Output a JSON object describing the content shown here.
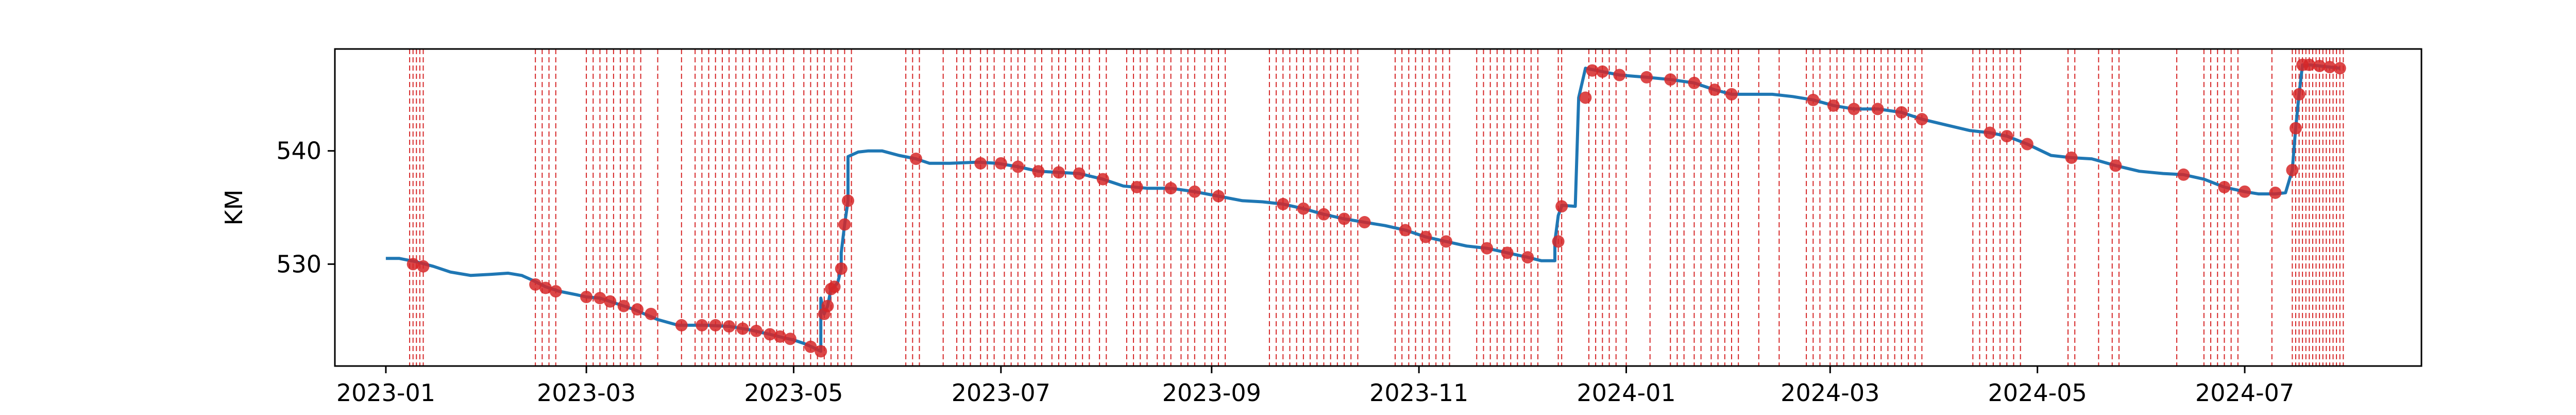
{
  "chart_data": {
    "type": "line",
    "title": "",
    "xlabel": "",
    "ylabel": "KM",
    "xlim": [
      "2022-12-17",
      "2024-08-22"
    ],
    "ylim": [
      521,
      549
    ],
    "grid": false,
    "legend": "none",
    "colors": {
      "series": "#1f77b4",
      "events": "#d62728",
      "points": "#d62728"
    },
    "x_ticks": [
      "2023-01",
      "2023-03",
      "2023-05",
      "2023-07",
      "2023-09",
      "2023-11",
      "2024-01",
      "2024-03",
      "2024-05",
      "2024-07"
    ],
    "x_tick_dates": [
      "2023-01-01",
      "2023-03-01",
      "2023-05-01",
      "2023-07-01",
      "2023-09-01",
      "2023-11-01",
      "2024-01-01",
      "2024-03-01",
      "2024-05-01",
      "2024-07-01"
    ],
    "y_ticks": [
      530,
      540
    ],
    "series": [
      {
        "x": [
          "2023-01-01",
          "2023-01-05",
          "2023-01-10",
          "2023-01-15",
          "2023-01-20",
          "2023-01-26",
          "2023-02-01",
          "2023-02-06",
          "2023-02-10",
          "2023-02-13",
          "2023-02-17",
          "2023-02-21",
          "2023-02-26",
          "2023-03-01",
          "2023-03-05",
          "2023-03-10",
          "2023-03-15",
          "2023-03-22",
          "2023-03-28",
          "2023-04-05",
          "2023-04-12",
          "2023-04-18",
          "2023-04-24",
          "2023-04-28",
          "2023-05-01",
          "2023-05-04",
          "2023-05-07",
          "2023-05-09",
          "2023-05-09",
          "2023-05-10",
          "2023-05-11",
          "2023-05-12",
          "2023-05-13",
          "2023-05-14",
          "2023-05-15",
          "2023-05-15",
          "2023-05-16",
          "2023-05-17",
          "2023-05-17",
          "2023-05-20",
          "2023-05-23",
          "2023-05-27",
          "2023-06-01",
          "2023-06-06",
          "2023-06-10",
          "2023-06-16",
          "2023-06-24",
          "2023-06-30",
          "2023-07-06",
          "2023-07-12",
          "2023-07-18",
          "2023-07-24",
          "2023-07-31",
          "2023-08-06",
          "2023-08-13",
          "2023-08-20",
          "2023-08-27",
          "2023-09-03",
          "2023-09-10",
          "2023-09-16",
          "2023-09-22",
          "2023-09-28",
          "2023-10-04",
          "2023-10-10",
          "2023-10-16",
          "2023-10-22",
          "2023-10-28",
          "2023-11-03",
          "2023-11-09",
          "2023-11-15",
          "2023-11-21",
          "2023-11-27",
          "2023-12-03",
          "2023-12-07",
          "2023-12-09",
          "2023-12-11",
          "2023-12-11",
          "2023-12-12",
          "2023-12-13",
          "2023-12-13",
          "2023-12-17",
          "2023-12-18",
          "2023-12-20",
          "2023-12-25",
          "2023-12-30",
          "2024-01-07",
          "2024-01-14",
          "2024-01-21",
          "2024-01-27",
          "2024-02-01",
          "2024-02-07",
          "2024-02-13",
          "2024-02-19",
          "2024-02-25",
          "2024-03-02",
          "2024-03-08",
          "2024-03-15",
          "2024-03-22",
          "2024-03-28",
          "2024-04-04",
          "2024-04-11",
          "2024-04-17",
          "2024-04-22",
          "2024-04-28",
          "2024-05-05",
          "2024-05-11",
          "2024-05-17",
          "2024-05-24",
          "2024-05-31",
          "2024-06-07",
          "2024-06-13",
          "2024-06-19",
          "2024-06-25",
          "2024-07-01",
          "2024-07-05",
          "2024-07-10",
          "2024-07-13",
          "2024-07-15",
          "2024-07-16",
          "2024-07-17",
          "2024-07-18",
          "2024-07-19",
          "2024-07-20",
          "2024-07-23",
          "2024-07-26",
          "2024-07-29"
        ],
        "y": [
          530.5,
          530.5,
          530.2,
          529.8,
          529.3,
          529.0,
          529.1,
          529.2,
          529.0,
          528.6,
          528.0,
          527.6,
          527.3,
          527.1,
          527.0,
          526.5,
          526.0,
          525.1,
          524.6,
          524.6,
          524.5,
          524.2,
          523.8,
          523.5,
          523.3,
          523.0,
          522.6,
          522.3,
          527.0,
          525.6,
          526.3,
          527.8,
          528.0,
          528.4,
          529.6,
          531.0,
          533.5,
          535.6,
          539.5,
          539.9,
          540.0,
          540.0,
          539.6,
          539.3,
          538.9,
          538.9,
          539.0,
          538.9,
          538.6,
          538.2,
          538.1,
          538.0,
          537.5,
          536.9,
          536.7,
          536.7,
          536.4,
          536.0,
          535.6,
          535.5,
          535.3,
          534.9,
          534.4,
          534.0,
          533.7,
          533.4,
          533.0,
          532.4,
          532.0,
          531.6,
          531.4,
          531.0,
          530.6,
          530.3,
          530.3,
          530.3,
          532.0,
          534.3,
          535.1,
          535.2,
          535.1,
          544.7,
          547.3,
          547.0,
          546.7,
          546.5,
          546.3,
          546.0,
          545.4,
          545.0,
          545.0,
          545.0,
          544.8,
          544.5,
          544.0,
          543.7,
          543.7,
          543.4,
          542.8,
          542.3,
          541.8,
          541.6,
          541.3,
          540.6,
          539.6,
          539.4,
          539.3,
          538.7,
          538.2,
          538.0,
          537.9,
          537.5,
          536.8,
          536.4,
          536.2,
          536.2,
          536.3,
          538.3,
          542.0,
          545.0,
          547.6,
          547.5,
          547.6,
          547.5,
          547.4,
          547.3
        ]
      }
    ],
    "points": {
      "x": [
        "2023-01-09",
        "2023-01-12",
        "2023-02-14",
        "2023-02-17",
        "2023-02-20",
        "2023-03-01",
        "2023-03-05",
        "2023-03-08",
        "2023-03-12",
        "2023-03-16",
        "2023-03-20",
        "2023-03-29",
        "2023-04-04",
        "2023-04-08",
        "2023-04-12",
        "2023-04-16",
        "2023-04-20",
        "2023-04-24",
        "2023-04-27",
        "2023-04-30",
        "2023-05-06",
        "2023-05-09",
        "2023-05-10",
        "2023-05-11",
        "2023-05-12",
        "2023-05-13",
        "2023-05-15",
        "2023-05-16",
        "2023-05-17",
        "2023-06-06",
        "2023-06-25",
        "2023-07-01",
        "2023-07-06",
        "2023-07-12",
        "2023-07-18",
        "2023-07-24",
        "2023-07-31",
        "2023-08-10",
        "2023-08-20",
        "2023-08-27",
        "2023-09-03",
        "2023-09-22",
        "2023-09-28",
        "2023-10-04",
        "2023-10-10",
        "2023-10-16",
        "2023-10-28",
        "2023-11-03",
        "2023-11-09",
        "2023-11-21",
        "2023-11-27",
        "2023-12-03",
        "2023-12-12",
        "2023-12-13",
        "2023-12-20",
        "2023-12-22",
        "2023-12-25",
        "2023-12-30",
        "2024-01-07",
        "2024-01-14",
        "2024-01-21",
        "2024-01-27",
        "2024-02-01",
        "2024-02-25",
        "2024-03-02",
        "2024-03-08",
        "2024-03-15",
        "2024-03-22",
        "2024-03-28",
        "2024-04-17",
        "2024-04-22",
        "2024-04-28",
        "2024-05-11",
        "2024-05-24",
        "2024-06-13",
        "2024-06-25",
        "2024-07-01",
        "2024-07-10",
        "2024-07-15",
        "2024-07-16",
        "2024-07-17",
        "2024-07-18",
        "2024-07-20",
        "2024-07-23",
        "2024-07-26",
        "2024-07-29"
      ],
      "y": [
        530.0,
        529.8,
        528.2,
        527.9,
        527.6,
        527.1,
        527.0,
        526.7,
        526.3,
        526.0,
        525.6,
        524.6,
        524.6,
        524.6,
        524.5,
        524.3,
        524.1,
        523.8,
        523.6,
        523.4,
        522.7,
        522.3,
        525.6,
        526.3,
        527.8,
        528.0,
        529.6,
        533.5,
        535.6,
        539.3,
        538.9,
        538.9,
        538.6,
        538.2,
        538.1,
        538.0,
        537.5,
        536.8,
        536.7,
        536.4,
        536.0,
        535.3,
        534.9,
        534.4,
        534.0,
        533.7,
        533.0,
        532.4,
        532.0,
        531.4,
        531.0,
        530.6,
        532.0,
        535.1,
        544.7,
        547.1,
        547.0,
        546.7,
        546.5,
        546.3,
        546.0,
        545.4,
        545.0,
        544.5,
        544.0,
        543.7,
        543.7,
        543.4,
        542.8,
        541.6,
        541.3,
        540.6,
        539.4,
        538.7,
        537.9,
        536.8,
        536.4,
        536.3,
        538.3,
        542.0,
        545.0,
        547.6,
        547.6,
        547.5,
        547.4,
        547.3
      ]
    },
    "event_dates": [
      "2023-01-08",
      "2023-01-09",
      "2023-01-10",
      "2023-01-11",
      "2023-01-12",
      "2023-02-14",
      "2023-02-16",
      "2023-02-18",
      "2023-02-20",
      "2023-03-01",
      "2023-03-03",
      "2023-03-05",
      "2023-03-07",
      "2023-03-09",
      "2023-03-11",
      "2023-03-13",
      "2023-03-15",
      "2023-03-17",
      "2023-03-22",
      "2023-03-29",
      "2023-04-02",
      "2023-04-04",
      "2023-04-06",
      "2023-04-08",
      "2023-04-10",
      "2023-04-12",
      "2023-04-14",
      "2023-04-16",
      "2023-04-18",
      "2023-04-20",
      "2023-04-22",
      "2023-04-24",
      "2023-04-26",
      "2023-04-28",
      "2023-05-01",
      "2023-05-04",
      "2023-05-06",
      "2023-05-08",
      "2023-05-10",
      "2023-05-12",
      "2023-05-14",
      "2023-05-16",
      "2023-05-18",
      "2023-06-03",
      "2023-06-05",
      "2023-06-07",
      "2023-06-14",
      "2023-06-18",
      "2023-06-20",
      "2023-06-22",
      "2023-06-25",
      "2023-06-27",
      "2023-06-29",
      "2023-07-02",
      "2023-07-04",
      "2023-07-06",
      "2023-07-08",
      "2023-07-11",
      "2023-07-13",
      "2023-07-16",
      "2023-07-18",
      "2023-07-20",
      "2023-07-23",
      "2023-07-25",
      "2023-07-27",
      "2023-07-30",
      "2023-08-01",
      "2023-08-07",
      "2023-08-09",
      "2023-08-11",
      "2023-08-13",
      "2023-08-16",
      "2023-08-18",
      "2023-08-20",
      "2023-08-23",
      "2023-08-25",
      "2023-08-27",
      "2023-08-30",
      "2023-09-01",
      "2023-09-03",
      "2023-09-05",
      "2023-09-18",
      "2023-09-20",
      "2023-09-22",
      "2023-09-24",
      "2023-09-26",
      "2023-09-28",
      "2023-09-30",
      "2023-10-02",
      "2023-10-04",
      "2023-10-06",
      "2023-10-08",
      "2023-10-10",
      "2023-10-12",
      "2023-10-14",
      "2023-10-25",
      "2023-10-27",
      "2023-10-29",
      "2023-10-31",
      "2023-11-02",
      "2023-11-04",
      "2023-11-06",
      "2023-11-08",
      "2023-11-10",
      "2023-11-18",
      "2023-11-20",
      "2023-11-22",
      "2023-11-24",
      "2023-11-26",
      "2023-11-28",
      "2023-11-30",
      "2023-12-02",
      "2023-12-04",
      "2023-12-06",
      "2023-12-12",
      "2023-12-13",
      "2023-12-21",
      "2023-12-23",
      "2023-12-25",
      "2023-12-27",
      "2023-12-29",
      "2024-01-01",
      "2024-01-08",
      "2024-01-14",
      "2024-01-16",
      "2024-01-18",
      "2024-01-21",
      "2024-01-23",
      "2024-01-26",
      "2024-01-28",
      "2024-01-30",
      "2024-02-01",
      "2024-02-03",
      "2024-02-09",
      "2024-02-15",
      "2024-02-23",
      "2024-02-25",
      "2024-02-27",
      "2024-03-01",
      "2024-03-03",
      "2024-03-05",
      "2024-03-08",
      "2024-03-10",
      "2024-03-12",
      "2024-03-14",
      "2024-03-16",
      "2024-03-18",
      "2024-03-20",
      "2024-03-22",
      "2024-03-24",
      "2024-03-26",
      "2024-03-28",
      "2024-04-12",
      "2024-04-14",
      "2024-04-16",
      "2024-04-18",
      "2024-04-20",
      "2024-04-22",
      "2024-04-24",
      "2024-04-26",
      "2024-05-10",
      "2024-05-12",
      "2024-05-19",
      "2024-05-23",
      "2024-05-25",
      "2024-06-11",
      "2024-06-19",
      "2024-06-21",
      "2024-06-23",
      "2024-06-25",
      "2024-06-27",
      "2024-06-29",
      "2024-07-09",
      "2024-07-15",
      "2024-07-16",
      "2024-07-17",
      "2024-07-18",
      "2024-07-19",
      "2024-07-20",
      "2024-07-21",
      "2024-07-22",
      "2024-07-23",
      "2024-07-24",
      "2024-07-25",
      "2024-07-26",
      "2024-07-27",
      "2024-07-28",
      "2024-07-29",
      "2024-07-30"
    ]
  }
}
